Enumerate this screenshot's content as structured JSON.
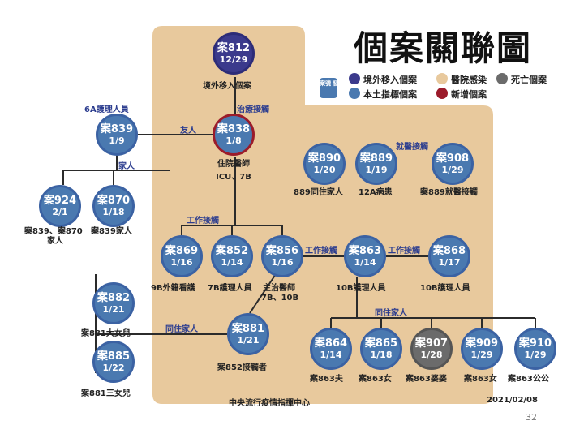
{
  "title": "個案關聯圖",
  "legend": {
    "badge": "案號 發病日",
    "imported": "境外移入個案",
    "hospital": "醫院感染",
    "death": "死亡個案",
    "local": "本土指標個案",
    "new": "新增個案"
  },
  "nodes": {
    "n812": {
      "id": "案812",
      "date": "12/29"
    },
    "n839": {
      "id": "案839",
      "date": "1/9"
    },
    "n838": {
      "id": "案838",
      "date": "1/8"
    },
    "n924": {
      "id": "案924",
      "date": "2/1"
    },
    "n870": {
      "id": "案870",
      "date": "1/18"
    },
    "n890": {
      "id": "案890",
      "date": "1/20"
    },
    "n889": {
      "id": "案889",
      "date": "1/19"
    },
    "n908": {
      "id": "案908",
      "date": "1/29"
    },
    "n869": {
      "id": "案869",
      "date": "1/16"
    },
    "n852": {
      "id": "案852",
      "date": "1/14"
    },
    "n856": {
      "id": "案856",
      "date": "1/16"
    },
    "n863": {
      "id": "案863",
      "date": "1/14"
    },
    "n868": {
      "id": "案868",
      "date": "1/17"
    },
    "n882": {
      "id": "案882",
      "date": "1/21"
    },
    "n881": {
      "id": "案881",
      "date": "1/21"
    },
    "n885": {
      "id": "案885",
      "date": "1/22"
    },
    "n864": {
      "id": "案864",
      "date": "1/14"
    },
    "n865": {
      "id": "案865",
      "date": "1/18"
    },
    "n907": {
      "id": "案907",
      "date": "1/28"
    },
    "n909": {
      "id": "案909",
      "date": "1/29"
    },
    "n910": {
      "id": "案910",
      "date": "1/29"
    }
  },
  "labels": {
    "l812": "境外移入個案",
    "l839": "6A護理人員",
    "l838a": "住院醫師",
    "l838b": "ICU、7B",
    "l924a": "案839、案870",
    "l924b": "家人",
    "l870": "案839家人",
    "l890": "889同住家人",
    "l889": "12A病患",
    "l908": "案889就醫接觸",
    "l869": "9B外籍看護",
    "l852": "7B護理人員",
    "l856a": "主治醫師",
    "l856b": "7B、10B",
    "l863": "10B護理人員",
    "l868": "10B護理人員",
    "l882": "案881大女兒",
    "l881": "案852接觸者",
    "l885": "案881三女兒",
    "l864": "案863夫",
    "l865": "案863女",
    "l907": "案863婆婆",
    "l909": "案863女",
    "l910": "案863公公"
  },
  "relations": {
    "treatment": "治療接觸",
    "friend": "友人",
    "family": "家人",
    "medical": "就醫接觸",
    "work": "工作接觸",
    "cohabit": "同住家人"
  },
  "footer": {
    "source": "中央流行疫情指揮中心",
    "date": "2021/02/08",
    "page": "32"
  }
}
